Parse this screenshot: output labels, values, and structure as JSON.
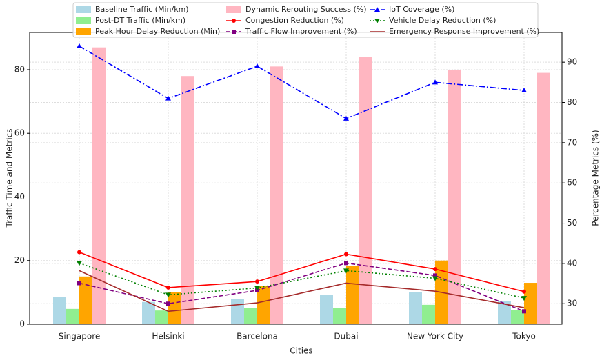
{
  "chart_data": {
    "type": "bar",
    "categories": [
      "Singapore",
      "Helsinki",
      "Barcelona",
      "Dubai",
      "New York City",
      "Tokyo"
    ],
    "xlabel": "Cities",
    "ylabel": "Traffic Time and Metrics",
    "y2label": "Percentage Metrics (%)",
    "ylim": [
      0,
      91.7
    ],
    "yticks": [
      0,
      20,
      40,
      60,
      80
    ],
    "y2lim": [
      24.9,
      97.4
    ],
    "y2ticks": [
      30,
      40,
      50,
      60,
      70,
      80,
      90
    ],
    "grid": true,
    "series": [
      {
        "name": "Baseline Traffic (Min/km)",
        "type": "bar",
        "color": "#add8e6",
        "values": [
          8.5,
          7,
          7.8,
          9.1,
          10,
          7.2
        ]
      },
      {
        "name": "Post-DT Traffic (Min/km)",
        "type": "bar",
        "color": "#90ee90",
        "values": [
          4.8,
          4.3,
          5.2,
          5.2,
          6.1,
          4.5
        ]
      },
      {
        "name": "Peak Hour Delay Reduction (Min)",
        "type": "bar",
        "color": "#ffa500",
        "values": [
          15,
          10,
          12,
          18.4,
          20,
          13
        ]
      },
      {
        "name": "Dynamic Rerouting Success (%)",
        "type": "bar",
        "color": "#ffb6c1",
        "values": [
          87,
          78,
          81,
          84,
          80,
          79
        ]
      },
      {
        "name": "Congestion Reduction (%)",
        "type": "line",
        "axis": "y2",
        "color": "#ff0000",
        "linestyle": "solid",
        "marker": "circle",
        "values": [
          42.8,
          34,
          35.5,
          42.3,
          38.6,
          33
        ]
      },
      {
        "name": "Traffic Flow Improvement (%)",
        "type": "line",
        "axis": "y2",
        "color": "#800080",
        "linestyle": "dashed",
        "marker": "square",
        "values": [
          35.1,
          30,
          33.3,
          40.1,
          37,
          28.1
        ]
      },
      {
        "name": "IoT Coverage (%)",
        "type": "line",
        "axis": "y2",
        "color": "#0000ff",
        "linestyle": "dashdot",
        "marker": "triangle-up",
        "values": [
          94,
          81,
          89,
          76,
          85,
          83
        ]
      },
      {
        "name": "Vehicle Delay Reduction (%)",
        "type": "line",
        "axis": "y2",
        "color": "#008000",
        "linestyle": "dotted",
        "marker": "triangle-down",
        "values": [
          40.1,
          32.2,
          33.9,
          38.2,
          36.3,
          31.4
        ]
      },
      {
        "name": "Emergency Response Improvement (%)",
        "type": "line",
        "axis": "y2",
        "color": "#a52a2a",
        "linestyle": "solid",
        "marker": "none",
        "values": [
          38.2,
          28.1,
          30.2,
          35.1,
          33.1,
          29
        ]
      }
    ]
  }
}
